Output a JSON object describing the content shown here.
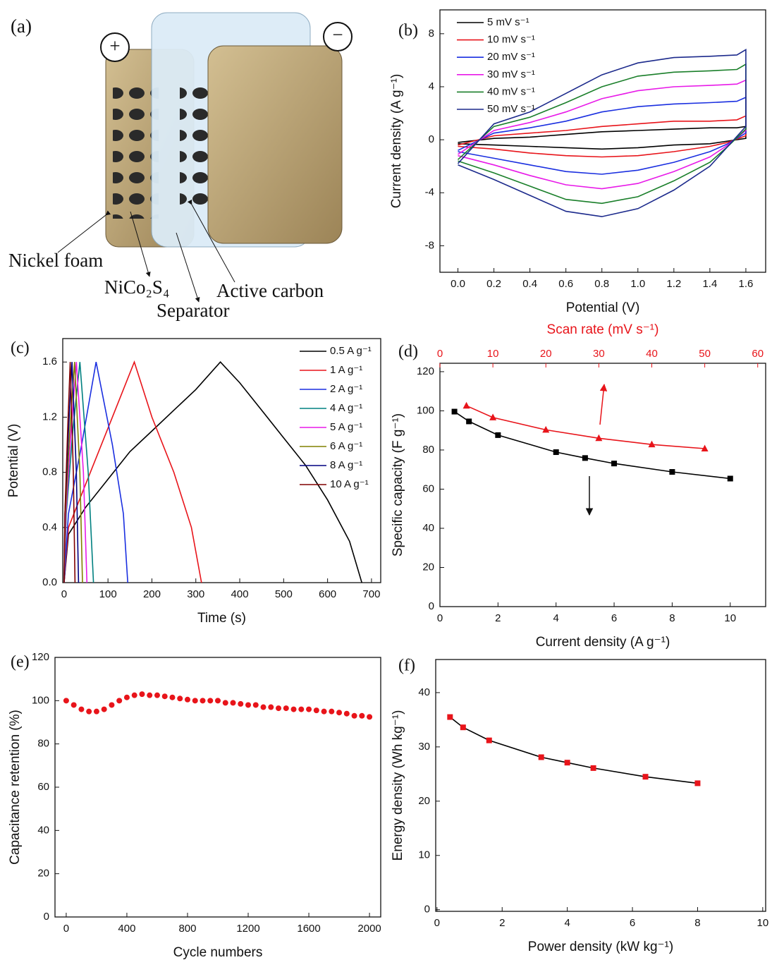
{
  "diagram": {
    "label": "(a)",
    "plus": "+",
    "minus": "−",
    "labels": [
      "Nickel foam",
      "NiCo₂S₄",
      "Separator",
      "Active carbon"
    ]
  },
  "chart_data": [
    {
      "type": "line",
      "label": "(b)",
      "xlabel": "Potential (V)",
      "ylabel": "Current density (A g⁻¹)",
      "xlim": [
        -0.1,
        1.71
      ],
      "ylim": [
        -10,
        9.8
      ],
      "xticks": [
        {
          "value": 0,
          "label": "0.0"
        },
        0.2,
        0.4,
        0.6,
        0.8,
        {
          "value": 1,
          "label": "1.0"
        },
        1.2,
        1.4,
        1.6
      ],
      "yticks": [
        -8,
        -4,
        0,
        4,
        8
      ],
      "legend": "upper left",
      "series": [
        {
          "name": "5 mV s⁻¹",
          "color": "#000000",
          "x": [
            0,
            0.2,
            0.4,
            0.6,
            0.8,
            1.0,
            1.2,
            1.4,
            1.55,
            1.6,
            1.6,
            1.5,
            1.4,
            1.2,
            1.0,
            0.8,
            0.6,
            0.4,
            0.2,
            0
          ],
          "values": [
            -0.2,
            0.1,
            0.2,
            0.4,
            0.6,
            0.7,
            0.8,
            0.9,
            0.9,
            1.0,
            0.1,
            -0.1,
            -0.3,
            -0.4,
            -0.6,
            -0.7,
            -0.6,
            -0.5,
            -0.4,
            -0.3
          ]
        },
        {
          "name": "10 mV s⁻¹",
          "color": "#e8141a",
          "x": [
            0,
            0.2,
            0.4,
            0.6,
            0.8,
            1.0,
            1.2,
            1.4,
            1.55,
            1.6,
            1.6,
            1.5,
            1.4,
            1.2,
            1.0,
            0.8,
            0.6,
            0.4,
            0.2,
            0
          ],
          "values": [
            -0.4,
            0.3,
            0.5,
            0.7,
            1.0,
            1.2,
            1.4,
            1.4,
            1.5,
            1.8,
            0.3,
            -0.2,
            -0.5,
            -0.9,
            -1.2,
            -1.3,
            -1.2,
            -1.0,
            -0.7,
            -0.5
          ]
        },
        {
          "name": "20 mV s⁻¹",
          "color": "#1a2fe0",
          "x": [
            0,
            0.2,
            0.4,
            0.6,
            0.8,
            1.0,
            1.2,
            1.4,
            1.55,
            1.6,
            1.6,
            1.5,
            1.4,
            1.2,
            1.0,
            0.8,
            0.6,
            0.4,
            0.2,
            0
          ],
          "values": [
            -0.8,
            0.5,
            0.9,
            1.4,
            2.1,
            2.5,
            2.7,
            2.8,
            2.9,
            3.2,
            0.5,
            -0.3,
            -0.9,
            -1.7,
            -2.3,
            -2.6,
            -2.4,
            -1.9,
            -1.4,
            -0.9
          ]
        },
        {
          "name": "30 mV s⁻¹",
          "color": "#e81ae8",
          "x": [
            0,
            0.2,
            0.4,
            0.6,
            0.8,
            1.0,
            1.2,
            1.4,
            1.55,
            1.6,
            1.6,
            1.5,
            1.4,
            1.2,
            1.0,
            0.8,
            0.6,
            0.4,
            0.2,
            0
          ],
          "values": [
            -1.1,
            0.7,
            1.3,
            2.1,
            3.1,
            3.7,
            4.0,
            4.1,
            4.2,
            4.5,
            0.7,
            -0.4,
            -1.3,
            -2.4,
            -3.3,
            -3.7,
            -3.4,
            -2.7,
            -1.9,
            -1.2
          ]
        },
        {
          "name": "40 mV s⁻¹",
          "color": "#1a7f2a",
          "x": [
            0,
            0.2,
            0.4,
            0.6,
            0.8,
            1.0,
            1.2,
            1.4,
            1.55,
            1.6,
            1.6,
            1.5,
            1.4,
            1.2,
            1.0,
            0.8,
            0.6,
            0.4,
            0.2,
            0
          ],
          "values": [
            -1.5,
            1.0,
            1.7,
            2.8,
            4.0,
            4.8,
            5.1,
            5.2,
            5.3,
            5.7,
            0.8,
            -0.5,
            -1.7,
            -3.1,
            -4.3,
            -4.8,
            -4.5,
            -3.5,
            -2.5,
            -1.6
          ]
        },
        {
          "name": "50 mV s⁻¹",
          "color": "#1c2a8c",
          "x": [
            0,
            0.2,
            0.4,
            0.6,
            0.8,
            1.0,
            1.2,
            1.4,
            1.55,
            1.6,
            1.6,
            1.5,
            1.4,
            1.2,
            1.0,
            0.8,
            0.6,
            0.4,
            0.2,
            0
          ],
          "values": [
            -1.8,
            1.2,
            2.1,
            3.5,
            4.9,
            5.8,
            6.2,
            6.3,
            6.4,
            6.8,
            1.0,
            -0.5,
            -2.0,
            -3.8,
            -5.2,
            -5.8,
            -5.4,
            -4.2,
            -3.0,
            -1.9
          ]
        }
      ]
    },
    {
      "type": "line",
      "label": "(c)",
      "xlabel": "Time (s)",
      "ylabel": "Potential (V)",
      "xlim": [
        -3,
        721
      ],
      "ylim": [
        0,
        1.77
      ],
      "xticks": [
        0,
        100,
        200,
        300,
        400,
        500,
        600,
        700
      ],
      "yticks": [
        {
          "value": 0,
          "label": "0.0"
        },
        0.4,
        0.8,
        1.2,
        1.6
      ],
      "legend": "upper right",
      "series": [
        {
          "name": "0.5 A g⁻¹",
          "color": "#000000",
          "x": [
            0,
            10,
            50,
            100,
            150,
            200,
            250,
            300,
            356,
            400,
            450,
            500,
            550,
            600,
            650,
            678
          ],
          "values": [
            0,
            0.35,
            0.55,
            0.75,
            0.95,
            1.1,
            1.25,
            1.4,
            1.6,
            1.45,
            1.25,
            1.05,
            0.85,
            0.6,
            0.3,
            0
          ]
        },
        {
          "name": "1 A g⁻¹",
          "color": "#e8141a",
          "x": [
            0,
            10,
            60,
            110,
            160,
            200,
            250,
            290,
            313
          ],
          "values": [
            0,
            0.4,
            0.8,
            1.2,
            1.6,
            1.2,
            0.8,
            0.4,
            0
          ]
        },
        {
          "name": "2 A g⁻¹",
          "color": "#1a2fe0",
          "x": [
            0,
            10,
            40,
            73,
            110,
            135,
            145
          ],
          "values": [
            0,
            0.5,
            1.0,
            1.6,
            1.0,
            0.5,
            0
          ]
        },
        {
          "name": "4 A g⁻¹",
          "color": "#008080",
          "x": [
            0,
            5,
            20,
            36,
            55,
            67
          ],
          "values": [
            0,
            0.5,
            1.1,
            1.6,
            0.8,
            0
          ]
        },
        {
          "name": "5 A g⁻¹",
          "color": "#e81ae8",
          "x": [
            0,
            4,
            16,
            28,
            44,
            52
          ],
          "values": [
            0,
            0.5,
            1.1,
            1.6,
            0.8,
            0
          ]
        },
        {
          "name": "6 A g⁻¹",
          "color": "#808000",
          "x": [
            0,
            3,
            13,
            24,
            36,
            42
          ],
          "values": [
            0,
            0.5,
            1.1,
            1.6,
            0.8,
            0
          ]
        },
        {
          "name": "8 A g⁻¹",
          "color": "#000080",
          "x": [
            0,
            2,
            10,
            18,
            28,
            33
          ],
          "values": [
            0,
            0.5,
            1.1,
            1.6,
            0.8,
            0
          ]
        },
        {
          "name": "10 A g⁻¹",
          "color": "#800000",
          "x": [
            0,
            2,
            8,
            14,
            21,
            25
          ],
          "values": [
            0,
            0.5,
            1.1,
            1.6,
            0.8,
            0
          ]
        }
      ]
    },
    {
      "type": "line",
      "label": "(d)",
      "xlabel": "Current density (A g⁻¹)",
      "ylabel": "Specific capacity (F g⁻¹)",
      "x2label": "Scan rate (mV s⁻¹)",
      "x2_color": "#e8141a",
      "xlim": [
        0,
        11.22
      ],
      "x2lim": [
        0,
        61.5
      ],
      "ylim": [
        0,
        124.3
      ],
      "xticks": [
        0,
        2,
        4,
        6,
        8,
        10
      ],
      "x2ticks": [
        0,
        10,
        20,
        30,
        40,
        50,
        60
      ],
      "yticks": [
        0,
        20,
        40,
        60,
        80,
        100,
        120
      ],
      "series": [
        {
          "color": "#000000",
          "marker": "square",
          "x": [
            0.5,
            1,
            2,
            4,
            5,
            6,
            8,
            10
          ],
          "values": [
            99.6,
            94.6,
            87.6,
            78.9,
            75.9,
            73.1,
            68.8,
            65.4
          ]
        },
        {
          "color": "#e8141a",
          "marker": "triangle",
          "axis": "x2",
          "x": [
            5,
            10,
            20,
            30,
            40,
            50
          ],
          "values": [
            102.6,
            96.6,
            90.3,
            86,
            82.8,
            80.7
          ]
        }
      ]
    },
    {
      "type": "line",
      "label": "(e)",
      "xlabel": "Cycle numbers",
      "ylabel": "Capacitance retention (%)",
      "xlim": [
        -74,
        2074
      ],
      "ylim": [
        0,
        120
      ],
      "xticks": [
        0,
        400,
        800,
        1200,
        1600,
        2000
      ],
      "yticks": [
        0,
        20,
        40,
        60,
        80,
        100,
        120
      ],
      "series": [
        {
          "color": "#e8141a",
          "marker": "circle",
          "line": false,
          "x": [
            0,
            50,
            100,
            150,
            200,
            250,
            300,
            350,
            400,
            450,
            500,
            550,
            600,
            650,
            700,
            750,
            800,
            850,
            900,
            950,
            1000,
            1050,
            1100,
            1150,
            1200,
            1250,
            1300,
            1350,
            1400,
            1450,
            1500,
            1550,
            1600,
            1650,
            1700,
            1750,
            1800,
            1850,
            1900,
            1950,
            2000
          ],
          "values": [
            100,
            98,
            96,
            95,
            95,
            96,
            98,
            100,
            101.5,
            102.5,
            103,
            102.5,
            102.5,
            102,
            101.5,
            101,
            100.5,
            100,
            100,
            100,
            100,
            99,
            99,
            98.5,
            98,
            98,
            97,
            97,
            96.5,
            96.5,
            96,
            96,
            96,
            95.5,
            95,
            95,
            94.5,
            94,
            93,
            93,
            92.5
          ]
        }
      ]
    },
    {
      "type": "line",
      "label": "(f)",
      "xlabel": "Power density (kW kg⁻¹)",
      "ylabel": "Energy density (Wh kg⁻¹)",
      "xlim": [
        -0.04,
        10.09
      ],
      "ylim": [
        -0.3,
        46.1
      ],
      "xticks": [
        0,
        2,
        4,
        6,
        8,
        10
      ],
      "yticks": [
        0,
        10,
        20,
        30,
        40
      ],
      "series": [
        {
          "color": "#e8141a",
          "line_color": "#000000",
          "marker": "square",
          "x": [
            0.4,
            0.8,
            1.6,
            3.2,
            4,
            4.8,
            6.4,
            8
          ],
          "values": [
            35.5,
            33.6,
            31.2,
            28.1,
            27.1,
            26.1,
            24.5,
            23.3
          ]
        }
      ]
    }
  ]
}
